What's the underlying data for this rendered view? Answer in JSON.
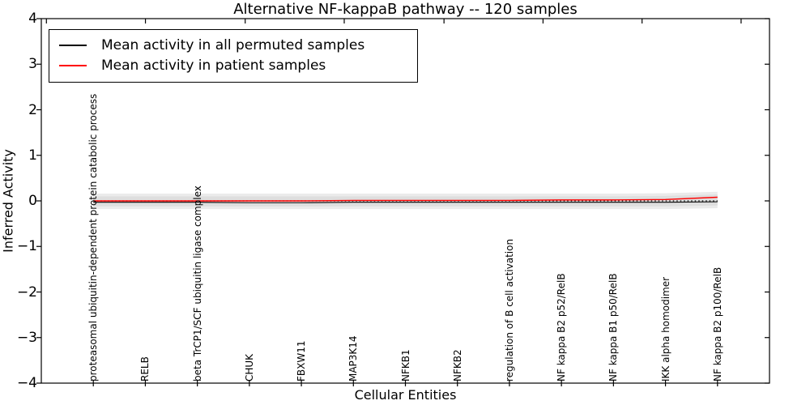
{
  "figure": {
    "background": "#ffffff"
  },
  "chart_data": {
    "type": "line",
    "title": "Alternative NF-kappaB pathway -- 120 samples",
    "xlabel": "Cellular Entities",
    "ylabel": "Inferred Activity",
    "ylim": [
      -4,
      4
    ],
    "xlim": [
      -1,
      13
    ],
    "grid": false,
    "ytick_values": [
      4,
      3,
      2,
      1,
      0,
      -1,
      -2,
      -3,
      -4
    ],
    "ytick_labels": [
      "4",
      "3",
      "2",
      "1",
      "0",
      "−1",
      "−2",
      "−3",
      "−4"
    ],
    "categories": [
      "proteasomal ubiquitin-dependent protein catabolic process",
      "RELB",
      "beta TrCP1/SCF ubiquitin ligase complex",
      "CHUK",
      "FBXW11",
      "MAP3K14",
      "NFKB1",
      "NFKB2",
      "regulation of B cell activation",
      "NF kappa B2 p52/RelB",
      "NF kappa B1 p50/RelB",
      "IKK alpha homodimer",
      "NF kappa B2 p100/RelB"
    ],
    "series": [
      {
        "name": "Mean activity in all permuted samples",
        "color": "#000000",
        "style": "solid",
        "values": [
          -0.03,
          -0.03,
          -0.03,
          -0.04,
          -0.04,
          -0.03,
          -0.03,
          -0.03,
          -0.03,
          -0.03,
          -0.03,
          -0.03,
          -0.02
        ]
      },
      {
        "name": "Mean activity in patient samples",
        "color": "#ff0000",
        "style": "solid",
        "values": [
          0.0,
          0.0,
          0.0,
          0.0,
          0.0,
          0.01,
          0.01,
          0.01,
          0.01,
          0.02,
          0.02,
          0.03,
          0.08
        ]
      }
    ],
    "zero_line": {
      "y": 0,
      "style": "dotted",
      "color": "#000000"
    },
    "bands": [
      {
        "name": "outer-permutation-band",
        "color": "#ebebeb",
        "upper": [
          0.16,
          0.16,
          0.16,
          0.16,
          0.16,
          0.16,
          0.16,
          0.16,
          0.16,
          0.16,
          0.16,
          0.17,
          0.2
        ],
        "lower": [
          -0.18,
          -0.18,
          -0.18,
          -0.18,
          -0.18,
          -0.18,
          -0.18,
          -0.18,
          -0.18,
          -0.18,
          -0.18,
          -0.18,
          -0.16
        ]
      },
      {
        "name": "inner-permutation-band",
        "color": "#dedede",
        "upper": [
          0.1,
          0.1,
          0.1,
          0.1,
          0.1,
          0.1,
          0.1,
          0.1,
          0.1,
          0.1,
          0.1,
          0.11,
          0.14
        ],
        "lower": [
          -0.12,
          -0.12,
          -0.12,
          -0.12,
          -0.12,
          -0.12,
          -0.12,
          -0.12,
          -0.12,
          -0.12,
          -0.12,
          -0.12,
          -0.1
        ]
      }
    ],
    "legend": {
      "position": "upper left",
      "entries": [
        "Mean activity in all permuted samples",
        "Mean activity in patient samples"
      ]
    }
  }
}
